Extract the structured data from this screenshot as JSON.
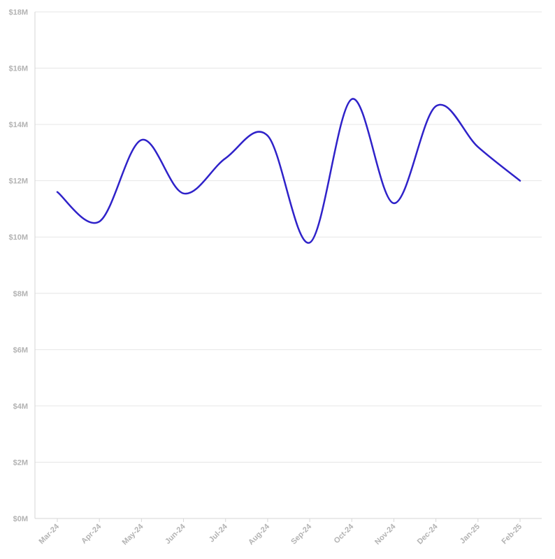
{
  "chart_data": {
    "type": "line",
    "x": [
      "Mar-24",
      "Apr-24",
      "May-24",
      "Jun-24",
      "Jul-24",
      "Aug-24",
      "Sep-24",
      "Oct-24",
      "Nov-24",
      "Dec-24",
      "Jan-25",
      "Feb-25"
    ],
    "y_ticks": [
      "$0M",
      "$2M",
      "$4M",
      "$6M",
      "$8M",
      "$10M",
      "$12M",
      "$14M",
      "$16M",
      "$18M"
    ],
    "series": [
      {
        "values": [
          11.6,
          10.55,
          13.45,
          11.55,
          12.8,
          13.6,
          9.8,
          14.9,
          11.2,
          14.65,
          13.2,
          12.0
        ]
      }
    ],
    "ylim": [
      0,
      18
    ],
    "grid": "horizontal",
    "legend": "none",
    "title": "",
    "xlabel": "",
    "ylabel": ""
  },
  "colors": {
    "line": "#2f22c9",
    "grid": "#e6e6e6",
    "axis": "#d6d6d6",
    "tick_text": "#b3b3b3"
  }
}
